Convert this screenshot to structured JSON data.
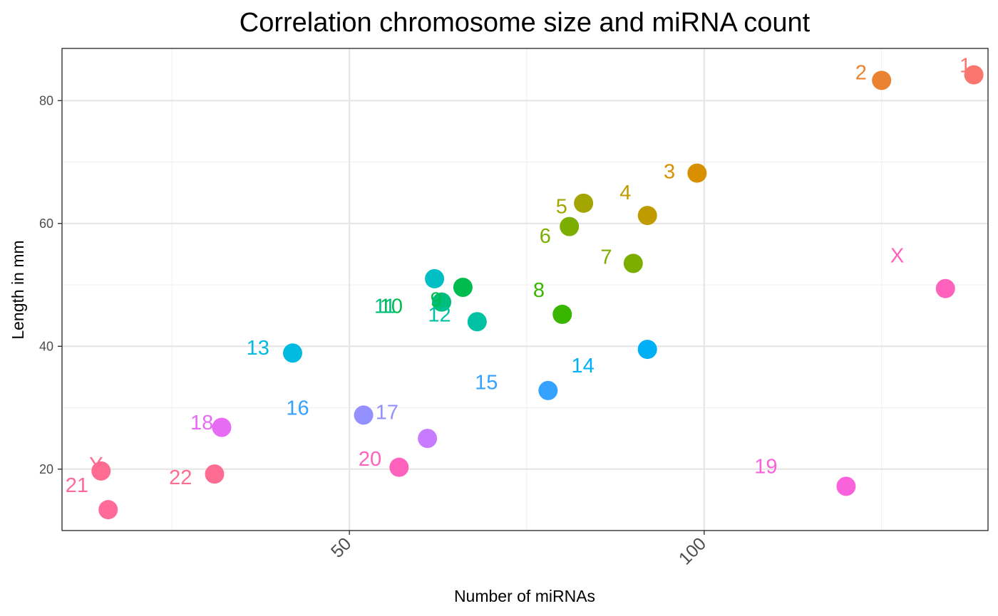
{
  "chart_data": {
    "type": "scatter",
    "title": "Correlation chromosome size and miRNA count",
    "xlabel": "Number of miRNAs",
    "ylabel": "Length in mm",
    "xlim": [
      9.5,
      140
    ],
    "ylim": [
      10,
      88.5
    ],
    "x_major_ticks": [
      50,
      100
    ],
    "x_minor_ticks": [
      25,
      75,
      125
    ],
    "y_major_ticks": [
      20,
      40,
      60,
      80
    ],
    "y_minor_ticks": [
      30,
      50,
      70
    ],
    "grid": true,
    "legend": "none",
    "points": [
      {
        "x": 138,
        "y": 84.2,
        "color": "#F8766D"
      },
      {
        "x": 125,
        "y": 83.3,
        "color": "#EA8331"
      },
      {
        "x": 99,
        "y": 68.2,
        "color": "#D89000"
      },
      {
        "x": 92,
        "y": 61.3,
        "color": "#C09B00"
      },
      {
        "x": 83,
        "y": 63.3,
        "color": "#A3A500"
      },
      {
        "x": 81,
        "y": 59.5,
        "color": "#7CAE00"
      },
      {
        "x": 90,
        "y": 53.5,
        "color": "#7CAE00"
      },
      {
        "x": 80,
        "y": 45.2,
        "color": "#39B600"
      },
      {
        "x": 66,
        "y": 49.6,
        "color": "#00BB4E"
      },
      {
        "x": 63,
        "y": 47.2,
        "color": "#00BF7D"
      },
      {
        "x": 68,
        "y": 44.0,
        "color": "#00C1A3"
      },
      {
        "x": 62,
        "y": 51.0,
        "color": "#00BFC4"
      },
      {
        "x": 42,
        "y": 38.9,
        "color": "#00BAE0"
      },
      {
        "x": 92,
        "y": 39.5,
        "color": "#00B0F6"
      },
      {
        "x": 78,
        "y": 32.8,
        "color": "#35A2FF"
      },
      {
        "x": 52,
        "y": 28.8,
        "color": "#9590FF"
      },
      {
        "x": 61,
        "y": 25.0,
        "color": "#C77CFF"
      },
      {
        "x": 32,
        "y": 26.8,
        "color": "#E76BF3"
      },
      {
        "x": 120,
        "y": 17.2,
        "color": "#FA62DB"
      },
      {
        "x": 57,
        "y": 20.3,
        "color": "#FF62BC"
      },
      {
        "x": 16,
        "y": 13.4,
        "color": "#FF6A98"
      },
      {
        "x": 31,
        "y": 19.2,
        "color": "#FF6C91"
      },
      {
        "x": 134,
        "y": 49.4,
        "color": "#FF62BC"
      },
      {
        "x": 15,
        "y": 19.7,
        "color": "#FF6C91"
      }
    ],
    "labels": [
      {
        "text": "1",
        "x": 136.8,
        "y": 85.8,
        "color": "#F8766D"
      },
      {
        "text": "2",
        "x": 122.1,
        "y": 84.6,
        "color": "#EA8331"
      },
      {
        "text": "3",
        "x": 95.1,
        "y": 68.5,
        "color": "#D89000"
      },
      {
        "text": "4",
        "x": 88.9,
        "y": 65.1,
        "color": "#C09B00"
      },
      {
        "text": "5",
        "x": 79.9,
        "y": 62.8,
        "color": "#A3A500"
      },
      {
        "text": "6",
        "x": 77.6,
        "y": 58.0,
        "color": "#7CAE00"
      },
      {
        "text": "7",
        "x": 86.2,
        "y": 54.6,
        "color": "#7CAE00"
      },
      {
        "text": "8",
        "x": 76.7,
        "y": 49.2,
        "color": "#39B600"
      },
      {
        "text": "9",
        "x": 62.2,
        "y": 47.6,
        "color": "#00BB4E"
      },
      {
        "text": "10",
        "x": 55.9,
        "y": 46.6,
        "color": "#00BB4E"
      },
      {
        "text": "11",
        "x": 55.0,
        "y": 46.6,
        "color": "#00BF7D"
      },
      {
        "text": "12",
        "x": 62.7,
        "y": 45.2,
        "color": "#00C1A3"
      },
      {
        "text": "13",
        "x": 37.1,
        "y": 39.8,
        "color": "#00BAE0"
      },
      {
        "text": "14",
        "x": 82.9,
        "y": 36.9,
        "color": "#00B0F6"
      },
      {
        "text": "15",
        "x": 69.3,
        "y": 34.2,
        "color": "#35A2FF"
      },
      {
        "text": "16",
        "x": 42.7,
        "y": 30.0,
        "color": "#35A2FF"
      },
      {
        "text": "17",
        "x": 55.3,
        "y": 29.3,
        "color": "#9590FF"
      },
      {
        "text": "18",
        "x": 29.2,
        "y": 27.6,
        "color": "#E76BF3"
      },
      {
        "text": "19",
        "x": 108.7,
        "y": 20.5,
        "color": "#FA62DB"
      },
      {
        "text": "20",
        "x": 52.9,
        "y": 21.7,
        "color": "#FF62BC"
      },
      {
        "text": "21",
        "x": 11.6,
        "y": 17.4,
        "color": "#FF6A98"
      },
      {
        "text": "22",
        "x": 26.2,
        "y": 18.7,
        "color": "#FF6C91"
      },
      {
        "text": "X",
        "x": 127.2,
        "y": 54.8,
        "color": "#FF62BC"
      },
      {
        "text": "Y",
        "x": 14.3,
        "y": 20.8,
        "color": "#FF6C91"
      }
    ]
  }
}
